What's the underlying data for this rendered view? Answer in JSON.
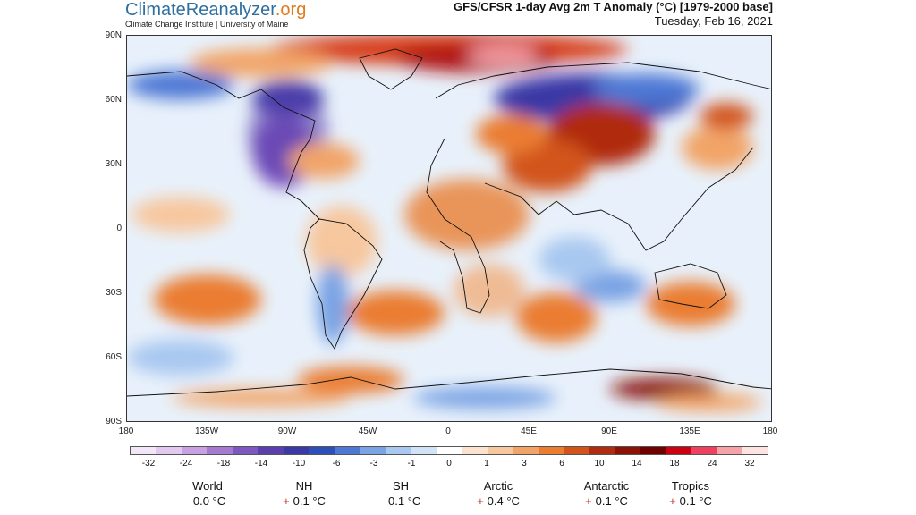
{
  "brand": {
    "name_part1": "ClimateReanalyzer",
    "name_part2": ".org",
    "subtitle": "Climate Change Institute | University of Maine"
  },
  "map": {
    "title": "GFS/CFSR 1-day Avg 2m T Anomaly (°C) [1979-2000 base]",
    "date": "Tuesday, Feb 16, 2021",
    "lat_ticks": [
      "90N",
      "60N",
      "30N",
      "0",
      "30S",
      "60S",
      "90S"
    ],
    "lon_ticks": [
      "180",
      "135W",
      "90W",
      "45W",
      "0",
      "45E",
      "90E",
      "135E",
      "180"
    ]
  },
  "colorbar": {
    "labels": [
      "-32",
      "-24",
      "-18",
      "-14",
      "-10",
      "-6",
      "-3",
      "-1",
      "0",
      "1",
      "3",
      "6",
      "10",
      "14",
      "18",
      "24",
      "32"
    ],
    "colors": [
      "#f3e6f6",
      "#e3c8ef",
      "#c9a0e2",
      "#a77ad2",
      "#7f57c1",
      "#5b3fae",
      "#3a39a5",
      "#2f4fb8",
      "#4d78d4",
      "#79a3e4",
      "#a9c8f0",
      "#d2e3f7",
      "#ffffff",
      "#fbe3d0",
      "#f7c79f",
      "#f2a468",
      "#ea7d30",
      "#d2541a",
      "#b02c10",
      "#8a1207",
      "#6e0000",
      "#cc0010",
      "#f04060",
      "#f7a1a8",
      "#fde3e1"
    ]
  },
  "stats": [
    {
      "name": "World",
      "sign": "",
      "value": "0.0 °C"
    },
    {
      "name": "NH",
      "sign": "+",
      "value": "0.1 °C"
    },
    {
      "name": "SH",
      "sign": "-",
      "value": "0.1 °C"
    },
    {
      "name": "Arctic",
      "sign": "+",
      "value": "0.4 °C"
    },
    {
      "name": "Antarctic",
      "sign": "+",
      "value": "0.1 °C"
    },
    {
      "name": "Tropics",
      "sign": "+",
      "value": "0.1 °C"
    }
  ]
}
